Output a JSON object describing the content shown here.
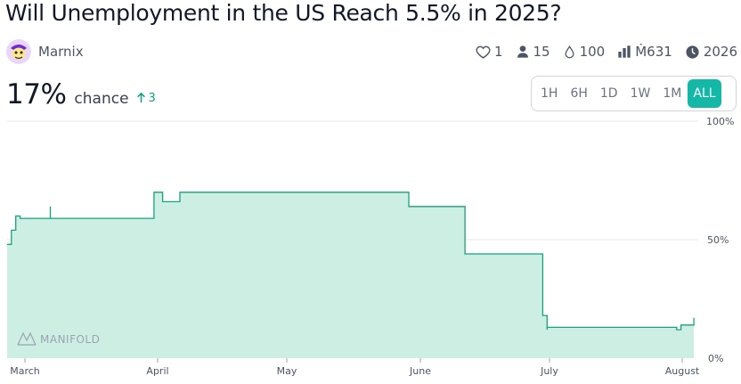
{
  "market": {
    "title": "Will Unemployment in the US Reach 5.5% in 2025?",
    "author": "Marnix",
    "probability": "17%",
    "probability_label": "chance",
    "probability_change": "3"
  },
  "stats": {
    "likes": "1",
    "traders": "15",
    "liquidity": "100",
    "volume": "Ṁ631",
    "close_year": "2026"
  },
  "range_buttons": [
    "1H",
    "6H",
    "1D",
    "1W",
    "1M",
    "ALL"
  ],
  "selected_range": "ALL",
  "watermark": "MANIFOLD",
  "colors": {
    "accent": "#14b8a6",
    "line": "#16a37b",
    "area": "#cdeee3",
    "change": "#0ea17a"
  },
  "icons": [
    "heart-icon",
    "user-icon",
    "droplet-icon",
    "bar-chart-icon",
    "clock-icon",
    "arrow-up-icon"
  ],
  "chart_data": {
    "type": "area",
    "x_tick_labels": [
      "March",
      "April",
      "May",
      "June",
      "July",
      "August"
    ],
    "y_tick_labels": [
      "100%",
      "50%",
      "0%"
    ],
    "ylim": [
      0,
      100
    ],
    "grid": true,
    "series": [
      {
        "x": [
          "2025-02-26",
          "2025-02-27",
          "2025-02-28",
          "2025-03-01",
          "2025-03-08",
          "2025-03-08",
          "2025-03-08",
          "2025-03-31",
          "2025-04-01",
          "2025-04-03",
          "2025-04-06",
          "2025-04-07",
          "2025-05-29",
          "2025-05-30",
          "2025-06-12",
          "2025-06-30",
          "2025-07-01",
          "2025-07-01",
          "2025-07-31",
          "2025-08-01",
          "2025-08-04"
        ],
        "y": [
          48,
          54,
          60,
          59,
          64,
          59,
          59,
          59,
          70,
          66,
          66,
          70,
          70,
          64,
          44,
          18,
          12,
          13,
          12,
          14,
          17
        ]
      }
    ]
  }
}
